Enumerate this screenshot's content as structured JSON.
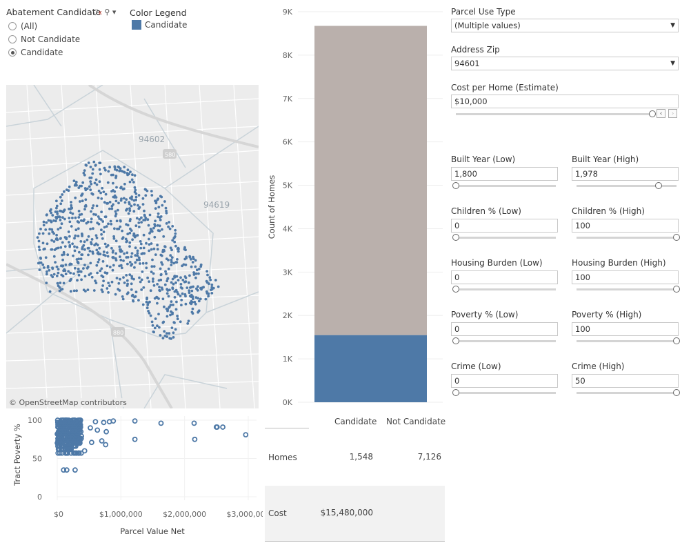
{
  "filter": {
    "title": "Abatement Candidate",
    "options": [
      "(All)",
      "Not Candidate",
      "Candidate"
    ],
    "selected_index": 2
  },
  "legend": {
    "title": "Color Legend",
    "items": [
      {
        "label": "Candidate",
        "color": "#4e79a7"
      }
    ]
  },
  "map": {
    "labels": [
      "94602",
      "94619"
    ],
    "shields": [
      "580",
      "880"
    ],
    "credit": "© OpenStreetMap contributors",
    "dot_color": "#4e79a7"
  },
  "chart_data": [
    {
      "type": "bar",
      "stacked": true,
      "ylabel": "Count of Homes",
      "ylim": [
        0,
        9000
      ],
      "ticks": [
        "0K",
        "1K",
        "2K",
        "3K",
        "4K",
        "5K",
        "6K",
        "7K",
        "8K",
        "9K"
      ],
      "series": [
        {
          "name": "Candidate",
          "value": 1548,
          "color": "#4e79a7"
        },
        {
          "name": "Not Candidate",
          "value": 7126,
          "color": "#bab0ac"
        }
      ]
    },
    {
      "type": "scatter",
      "xlabel": "Parcel Value Net",
      "ylabel": "Tract Poverty %",
      "xlim": [
        0,
        3000000
      ],
      "ylim": [
        0,
        100
      ],
      "x_ticks": [
        "$0",
        "$1,000,000",
        "$2,000,000",
        "$3,000,000"
      ],
      "y_ticks": [
        "0",
        "50",
        "100"
      ],
      "color": "#4e79a7",
      "points": [
        [
          600000,
          98
        ],
        [
          730000,
          97
        ],
        [
          820000,
          98
        ],
        [
          880000,
          99
        ],
        [
          1220000,
          99
        ],
        [
          1630000,
          96
        ],
        [
          2150000,
          96
        ],
        [
          2500000,
          91
        ],
        [
          2510000,
          91
        ],
        [
          2600000,
          91
        ],
        [
          2960000,
          81
        ],
        [
          520000,
          90
        ],
        [
          630000,
          87
        ],
        [
          770000,
          85
        ],
        [
          1220000,
          75
        ],
        [
          2160000,
          75
        ],
        [
          540000,
          71
        ],
        [
          700000,
          73
        ],
        [
          760000,
          68
        ],
        [
          430000,
          60
        ],
        [
          100000,
          35
        ],
        [
          150000,
          35
        ],
        [
          280000,
          35
        ]
      ]
    }
  ],
  "table": {
    "columns": [
      "Candidate",
      "Not Candidate"
    ],
    "rows": [
      {
        "label": "Homes",
        "values": [
          "1,548",
          "7,126"
        ]
      },
      {
        "label": "Cost",
        "values": [
          "$15,480,000",
          ""
        ]
      }
    ]
  },
  "params": {
    "parcel_use": {
      "label": "Parcel Use Type",
      "value": "(Multiple values)"
    },
    "zip": {
      "label": "Address Zip",
      "value": "94601"
    },
    "cost": {
      "label": "Cost per Home (Estimate)",
      "value": "$10,000",
      "fraction": 1.0
    },
    "pairs": [
      {
        "low_label": "Built Year (Low)",
        "low_value": "1,800",
        "low_fraction": 0.0,
        "high_label": "Built Year (High)",
        "high_value": "1,978",
        "high_fraction": 0.82
      },
      {
        "low_label": "Children % (Low)",
        "low_value": "0",
        "low_fraction": 0.0,
        "high_label": "Children % (High)",
        "high_value": "100",
        "high_fraction": 1.0
      },
      {
        "low_label": "Housing Burden (Low)",
        "low_value": "0",
        "low_fraction": 0.0,
        "high_label": "Housing Burden (High)",
        "high_value": "100",
        "high_fraction": 1.0
      },
      {
        "low_label": "Poverty % (Low)",
        "low_value": "0",
        "low_fraction": 0.0,
        "high_label": "Poverty % (High)",
        "high_value": "100",
        "high_fraction": 1.0
      },
      {
        "low_label": "Crime (Low)",
        "low_value": "0",
        "low_fraction": 0.0,
        "high_label": "Crime (High)",
        "high_value": "50",
        "high_fraction": 1.0
      }
    ]
  }
}
